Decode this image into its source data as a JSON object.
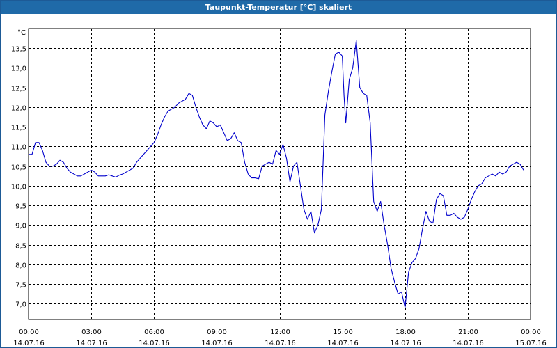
{
  "window": {
    "title": "Taupunkt-Temperatur [°C] skaliert"
  },
  "chart_data": {
    "type": "line",
    "title": "Taupunkt-Temperatur [°C] skaliert",
    "ylabel": "°C",
    "xlabel": "",
    "ylim": [
      6.6,
      14.0
    ],
    "xlim": [
      "2016-07-14 00:00",
      "2016-07-15 00:00"
    ],
    "grid": true,
    "line_color": "#0000cc",
    "y_ticks": [
      "13,5",
      "13,0",
      "12,5",
      "12,0",
      "11,5",
      "11,0",
      "10,5",
      "10,0",
      "9,5",
      "9,0",
      "8,5",
      "8,0",
      "7,5",
      "7,0"
    ],
    "y_tick_values": [
      13.5,
      13.0,
      12.5,
      12.0,
      11.5,
      11.0,
      10.5,
      10.0,
      9.5,
      9.0,
      8.5,
      8.0,
      7.5,
      7.0
    ],
    "x_ticks": [
      {
        "time": "00:00",
        "date": "14.07.16",
        "t": "2016-07-14 00:00"
      },
      {
        "time": "03:00",
        "date": "14.07.16",
        "t": "2016-07-14 03:00"
      },
      {
        "time": "06:00",
        "date": "14.07.16",
        "t": "2016-07-14 06:00"
      },
      {
        "time": "09:00",
        "date": "14.07.16",
        "t": "2016-07-14 09:00"
      },
      {
        "time": "12:00",
        "date": "14.07.16",
        "t": "2016-07-14 12:00"
      },
      {
        "time": "15:00",
        "date": "14.07.16",
        "t": "2016-07-14 15:00"
      },
      {
        "time": "18:00",
        "date": "14.07.16",
        "t": "2016-07-14 18:00"
      },
      {
        "time": "21:00",
        "date": "14.07.16",
        "t": "2016-07-14 21:00"
      },
      {
        "time": "00:00",
        "date": "15.07.16",
        "t": "2016-07-15 00:00"
      }
    ],
    "series": [
      {
        "values": [
          [
            "2016-07-14 00:00",
            10.8
          ],
          [
            "2016-07-14 00:10",
            10.8
          ],
          [
            "2016-07-14 00:20",
            11.1
          ],
          [
            "2016-07-14 00:30",
            11.1
          ],
          [
            "2016-07-14 00:40",
            10.9
          ],
          [
            "2016-07-14 00:50",
            10.6
          ],
          [
            "2016-07-14 01:00",
            10.5
          ],
          [
            "2016-07-14 01:10",
            10.5
          ],
          [
            "2016-07-14 01:20",
            10.55
          ],
          [
            "2016-07-14 01:30",
            10.65
          ],
          [
            "2016-07-14 01:40",
            10.6
          ],
          [
            "2016-07-14 01:50",
            10.45
          ],
          [
            "2016-07-14 02:00",
            10.35
          ],
          [
            "2016-07-14 02:10",
            10.3
          ],
          [
            "2016-07-14 02:20",
            10.25
          ],
          [
            "2016-07-14 02:30",
            10.25
          ],
          [
            "2016-07-14 02:40",
            10.3
          ],
          [
            "2016-07-14 02:50",
            10.35
          ],
          [
            "2016-07-14 03:00",
            10.4
          ],
          [
            "2016-07-14 03:10",
            10.35
          ],
          [
            "2016-07-14 03:20",
            10.25
          ],
          [
            "2016-07-14 03:30",
            10.25
          ],
          [
            "2016-07-14 03:40",
            10.25
          ],
          [
            "2016-07-14 03:50",
            10.28
          ],
          [
            "2016-07-14 04:00",
            10.25
          ],
          [
            "2016-07-14 04:10",
            10.22
          ],
          [
            "2016-07-14 04:20",
            10.27
          ],
          [
            "2016-07-14 04:30",
            10.3
          ],
          [
            "2016-07-14 04:40",
            10.35
          ],
          [
            "2016-07-14 04:50",
            10.4
          ],
          [
            "2016-07-14 05:00",
            10.45
          ],
          [
            "2016-07-14 05:10",
            10.6
          ],
          [
            "2016-07-14 05:20",
            10.7
          ],
          [
            "2016-07-14 05:30",
            10.8
          ],
          [
            "2016-07-14 05:40",
            10.9
          ],
          [
            "2016-07-14 05:50",
            11.0
          ],
          [
            "2016-07-14 06:00",
            11.1
          ],
          [
            "2016-07-14 06:10",
            11.3
          ],
          [
            "2016-07-14 06:20",
            11.55
          ],
          [
            "2016-07-14 06:30",
            11.75
          ],
          [
            "2016-07-14 06:40",
            11.9
          ],
          [
            "2016-07-14 06:50",
            11.95
          ],
          [
            "2016-07-14 07:00",
            12.0
          ],
          [
            "2016-07-14 07:10",
            12.1
          ],
          [
            "2016-07-14 07:20",
            12.15
          ],
          [
            "2016-07-14 07:30",
            12.2
          ],
          [
            "2016-07-14 07:40",
            12.35
          ],
          [
            "2016-07-14 07:50",
            12.3
          ],
          [
            "2016-07-14 08:00",
            12.0
          ],
          [
            "2016-07-14 08:10",
            11.75
          ],
          [
            "2016-07-14 08:20",
            11.55
          ],
          [
            "2016-07-14 08:30",
            11.45
          ],
          [
            "2016-07-14 08:40",
            11.65
          ],
          [
            "2016-07-14 08:50",
            11.6
          ],
          [
            "2016-07-14 09:00",
            11.5
          ],
          [
            "2016-07-14 09:10",
            11.55
          ],
          [
            "2016-07-14 09:20",
            11.35
          ],
          [
            "2016-07-14 09:30",
            11.15
          ],
          [
            "2016-07-14 09:40",
            11.2
          ],
          [
            "2016-07-14 09:50",
            11.35
          ],
          [
            "2016-07-14 10:00",
            11.15
          ],
          [
            "2016-07-14 10:10",
            11.1
          ],
          [
            "2016-07-14 10:20",
            10.6
          ],
          [
            "2016-07-14 10:30",
            10.3
          ],
          [
            "2016-07-14 10:40",
            10.2
          ],
          [
            "2016-07-14 10:50",
            10.2
          ],
          [
            "2016-07-14 11:00",
            10.18
          ],
          [
            "2016-07-14 11:10",
            10.5
          ],
          [
            "2016-07-14 11:20",
            10.55
          ],
          [
            "2016-07-14 11:30",
            10.6
          ],
          [
            "2016-07-14 11:40",
            10.55
          ],
          [
            "2016-07-14 11:50",
            10.9
          ],
          [
            "2016-07-14 12:00",
            10.8
          ],
          [
            "2016-07-14 12:10",
            11.05
          ],
          [
            "2016-07-14 12:20",
            10.7
          ],
          [
            "2016-07-14 12:30",
            10.1
          ],
          [
            "2016-07-14 12:40",
            10.5
          ],
          [
            "2016-07-14 12:50",
            10.6
          ],
          [
            "2016-07-14 13:00",
            10.0
          ],
          [
            "2016-07-14 13:10",
            9.4
          ],
          [
            "2016-07-14 13:20",
            9.15
          ],
          [
            "2016-07-14 13:30",
            9.35
          ],
          [
            "2016-07-14 13:40",
            8.8
          ],
          [
            "2016-07-14 13:50",
            9.0
          ],
          [
            "2016-07-14 14:00",
            9.4
          ],
          [
            "2016-07-14 14:10",
            11.8
          ],
          [
            "2016-07-14 14:20",
            12.4
          ],
          [
            "2016-07-14 14:30",
            12.9
          ],
          [
            "2016-07-14 14:40",
            13.35
          ],
          [
            "2016-07-14 14:50",
            13.4
          ],
          [
            "2016-07-14 15:00",
            13.3
          ],
          [
            "2016-07-14 15:05",
            12.3
          ],
          [
            "2016-07-14 15:10",
            11.6
          ],
          [
            "2016-07-14 15:20",
            12.7
          ],
          [
            "2016-07-14 15:30",
            13.0
          ],
          [
            "2016-07-14 15:40",
            13.7
          ],
          [
            "2016-07-14 15:50",
            12.5
          ],
          [
            "2016-07-14 16:00",
            12.35
          ],
          [
            "2016-07-14 16:10",
            12.3
          ],
          [
            "2016-07-14 16:20",
            11.6
          ],
          [
            "2016-07-14 16:30",
            9.6
          ],
          [
            "2016-07-14 16:40",
            9.35
          ],
          [
            "2016-07-14 16:50",
            9.6
          ],
          [
            "2016-07-14 17:00",
            9.0
          ],
          [
            "2016-07-14 17:10",
            8.5
          ],
          [
            "2016-07-14 17:20",
            7.9
          ],
          [
            "2016-07-14 17:30",
            7.55
          ],
          [
            "2016-07-14 17:40",
            7.25
          ],
          [
            "2016-07-14 17:50",
            7.3
          ],
          [
            "2016-07-14 18:00",
            6.9
          ],
          [
            "2016-07-14 18:10",
            7.8
          ],
          [
            "2016-07-14 18:20",
            8.05
          ],
          [
            "2016-07-14 18:30",
            8.15
          ],
          [
            "2016-07-14 18:40",
            8.4
          ],
          [
            "2016-07-14 18:50",
            8.9
          ],
          [
            "2016-07-14 19:00",
            9.35
          ],
          [
            "2016-07-14 19:10",
            9.1
          ],
          [
            "2016-07-14 19:20",
            9.05
          ],
          [
            "2016-07-14 19:30",
            9.65
          ],
          [
            "2016-07-14 19:40",
            9.8
          ],
          [
            "2016-07-14 19:50",
            9.75
          ],
          [
            "2016-07-14 20:00",
            9.25
          ],
          [
            "2016-07-14 20:10",
            9.25
          ],
          [
            "2016-07-14 20:20",
            9.3
          ],
          [
            "2016-07-14 20:30",
            9.2
          ],
          [
            "2016-07-14 20:40",
            9.15
          ],
          [
            "2016-07-14 20:50",
            9.2
          ],
          [
            "2016-07-14 21:00",
            9.4
          ],
          [
            "2016-07-14 21:10",
            9.65
          ],
          [
            "2016-07-14 21:20",
            9.85
          ],
          [
            "2016-07-14 21:30",
            10.0
          ],
          [
            "2016-07-14 21:40",
            10.05
          ],
          [
            "2016-07-14 21:50",
            10.2
          ],
          [
            "2016-07-14 22:00",
            10.25
          ],
          [
            "2016-07-14 22:10",
            10.3
          ],
          [
            "2016-07-14 22:20",
            10.25
          ],
          [
            "2016-07-14 22:30",
            10.35
          ],
          [
            "2016-07-14 22:40",
            10.3
          ],
          [
            "2016-07-14 22:50",
            10.35
          ],
          [
            "2016-07-14 23:00",
            10.5
          ],
          [
            "2016-07-14 23:10",
            10.55
          ],
          [
            "2016-07-14 23:20",
            10.6
          ],
          [
            "2016-07-14 23:30",
            10.55
          ],
          [
            "2016-07-14 23:40",
            10.4
          ]
        ]
      }
    ]
  }
}
